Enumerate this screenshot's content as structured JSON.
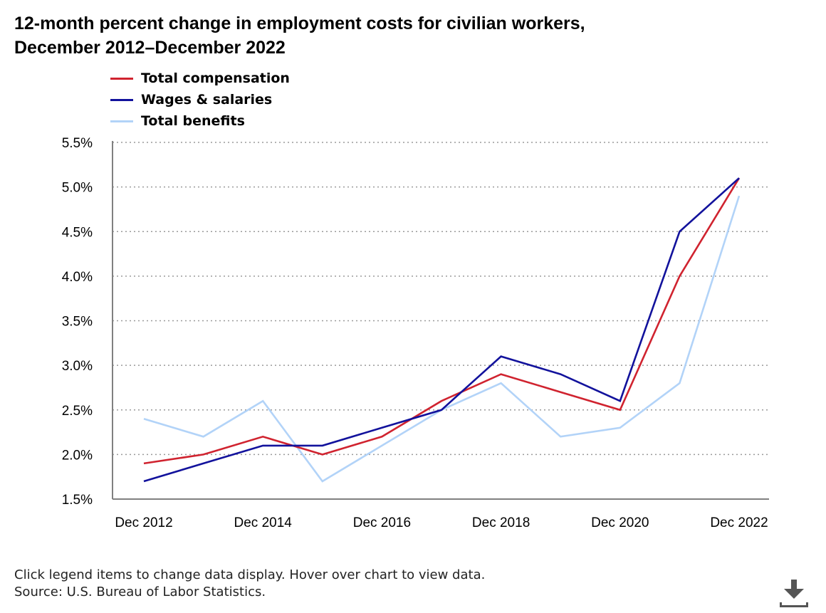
{
  "title_line1": "12-month percent change in employment costs for civilian workers,",
  "title_line2": "December 2012–December 2022",
  "footer": {
    "note": "Click legend items to change data display. Hover over chart to view data.",
    "source": "Source: U.S. Bureau of Labor Statistics."
  },
  "icons": {
    "download": "download-icon"
  },
  "chart_data": {
    "type": "line",
    "title": "12-month percent change in employment costs for civilian workers, December 2012–December 2022",
    "xlabel": "",
    "ylabel": "",
    "x": [
      "Dec 2012",
      "Dec 2013",
      "Dec 2014",
      "Dec 2015",
      "Dec 2016",
      "Dec 2017",
      "Dec 2018",
      "Dec 2019",
      "Dec 2020",
      "Dec 2021",
      "Dec 2022"
    ],
    "x_tick_labels": [
      "Dec 2012",
      "Dec 2014",
      "Dec 2016",
      "Dec 2018",
      "Dec 2020",
      "Dec 2022"
    ],
    "y_ticks": [
      1.5,
      2.0,
      2.5,
      3.0,
      3.5,
      4.0,
      4.5,
      5.0,
      5.5
    ],
    "y_tick_labels": [
      "1.5%",
      "2.0%",
      "2.5%",
      "3.0%",
      "3.5%",
      "4.0%",
      "4.5%",
      "5.0%",
      "5.5%"
    ],
    "ylim": [
      1.5,
      5.5
    ],
    "grid": "horizontal dotted",
    "legend_position": "top-left",
    "series": [
      {
        "name": "Total compensation",
        "color": "#d0232f",
        "values": [
          1.9,
          2.0,
          2.2,
          2.0,
          2.2,
          2.6,
          2.9,
          2.7,
          2.5,
          4.0,
          5.1
        ]
      },
      {
        "name": "Wages & salaries",
        "color": "#12129c",
        "values": [
          1.7,
          1.9,
          2.1,
          2.1,
          2.3,
          2.5,
          3.1,
          2.9,
          2.6,
          4.5,
          5.1
        ]
      },
      {
        "name": "Total benefits",
        "color": "#b2d3f8",
        "values": [
          2.4,
          2.2,
          2.6,
          1.7,
          2.1,
          2.5,
          2.8,
          2.2,
          2.3,
          2.8,
          4.9
        ]
      }
    ]
  }
}
